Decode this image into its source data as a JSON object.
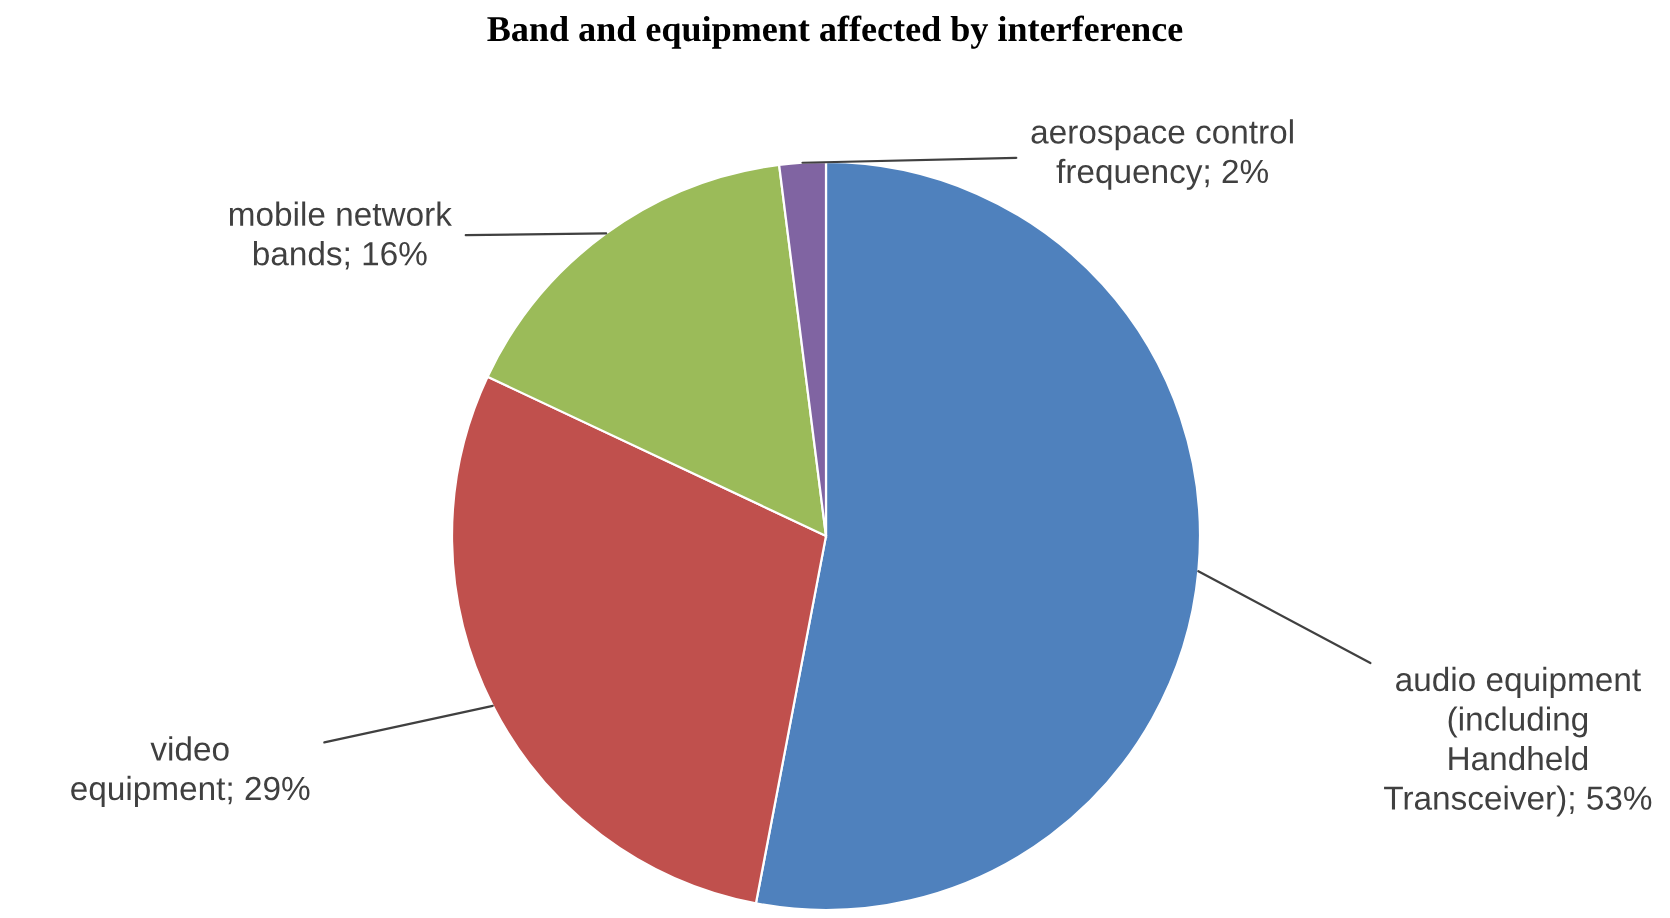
{
  "chart_data": {
    "type": "pie",
    "title": "Band and equipment affected by interference",
    "categories": [
      "audio equipment (including Handheld Transceiver)",
      "video equipment",
      "mobile network bands",
      "aerospace control frequency"
    ],
    "values": [
      53,
      29,
      16,
      2
    ],
    "value_labels": [
      "53%",
      "29%",
      "16%",
      "2%"
    ],
    "colors": [
      "#4f81bd",
      "#c0504d",
      "#9bbb59",
      "#8064a2"
    ],
    "legend": false
  }
}
